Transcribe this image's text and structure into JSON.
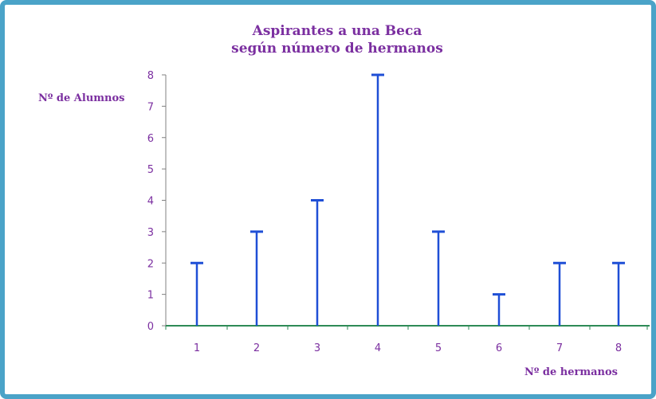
{
  "chart_data": {
    "type": "bar",
    "style": "stick",
    "title": [
      "Aspirantes a una Beca",
      "según número de hermanos"
    ],
    "xlabel": "Nº de hermanos",
    "ylabel": "Nº  de Alumnos",
    "categories": [
      "1",
      "2",
      "3",
      "4",
      "5",
      "6",
      "7",
      "8"
    ],
    "values": [
      2,
      3,
      4,
      8,
      3,
      1,
      2,
      2
    ],
    "ylim": [
      0,
      8
    ],
    "yticks": [
      "0",
      "1",
      "2",
      "3",
      "4",
      "5",
      "6",
      "7",
      "8"
    ],
    "grid": false,
    "legend": "none",
    "colors": {
      "bars": "#1f4fd6",
      "axis": "#2e8b57",
      "text": "#7b2fa0",
      "frame": "#4aa3c8"
    }
  }
}
